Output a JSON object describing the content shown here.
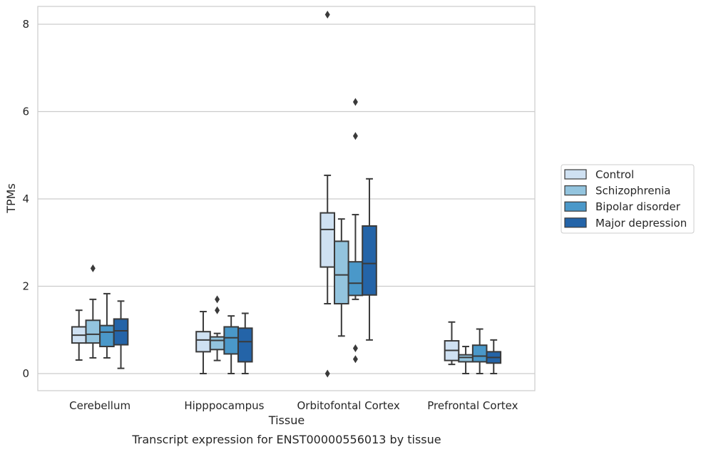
{
  "chart_data": {
    "type": "box",
    "title": "",
    "caption": "Transcript expression for ENST00000556013 by tissue",
    "xlabel": "Tissue",
    "ylabel": "TPMs",
    "ylim": [
      -0.4,
      8.65
    ],
    "yticks": [
      0,
      2,
      4,
      6,
      8
    ],
    "grid": "horizontal",
    "legend_placement": "right",
    "categories": [
      "Cerebellum",
      "Hipppocampus",
      "Orbitofontal Cortex",
      "Prefrontal Cortex"
    ],
    "series": [
      {
        "name": "Control",
        "color": "#cfe1f2",
        "boxes": [
          {
            "whislo": 0.31,
            "q1": 0.7,
            "median": 0.88,
            "q3": 1.07,
            "whishi": 1.45,
            "fliers": []
          },
          {
            "whislo": 0.0,
            "q1": 0.5,
            "median": 0.77,
            "q3": 0.96,
            "whishi": 1.42,
            "fliers": []
          },
          {
            "whislo": 1.6,
            "q1": 2.44,
            "median": 3.3,
            "q3": 3.68,
            "whishi": 4.54,
            "fliers": [
              8.22,
              0.0
            ]
          },
          {
            "whislo": 0.21,
            "q1": 0.3,
            "median": 0.53,
            "q3": 0.75,
            "whishi": 1.18,
            "fliers": []
          }
        ]
      },
      {
        "name": "Schizophrenia",
        "color": "#93c4de",
        "boxes": [
          {
            "whislo": 0.36,
            "q1": 0.7,
            "median": 0.9,
            "q3": 1.22,
            "whishi": 1.7,
            "fliers": [
              2.41
            ]
          },
          {
            "whislo": 0.3,
            "q1": 0.55,
            "median": 0.76,
            "q3": 0.84,
            "whishi": 0.92,
            "fliers": [
              1.7,
              1.45
            ]
          },
          {
            "whislo": 0.86,
            "q1": 1.6,
            "median": 2.26,
            "q3": 3.03,
            "whishi": 3.54,
            "fliers": []
          },
          {
            "whislo": 0.0,
            "q1": 0.27,
            "median": 0.37,
            "q3": 0.43,
            "whishi": 0.62,
            "fliers": []
          }
        ]
      },
      {
        "name": "Bipolar disorder",
        "color": "#4a98c9",
        "boxes": [
          {
            "whislo": 0.36,
            "q1": 0.62,
            "median": 0.95,
            "q3": 1.1,
            "whishi": 1.83,
            "fliers": []
          },
          {
            "whislo": 0.0,
            "q1": 0.45,
            "median": 0.82,
            "q3": 1.07,
            "whishi": 1.32,
            "fliers": []
          },
          {
            "whislo": 1.7,
            "q1": 1.79,
            "median": 2.07,
            "q3": 2.56,
            "whishi": 3.64,
            "fliers": [
              6.22,
              5.44,
              0.58,
              0.33
            ]
          },
          {
            "whislo": 0.0,
            "q1": 0.27,
            "median": 0.4,
            "q3": 0.65,
            "whishi": 1.02,
            "fliers": []
          }
        ]
      },
      {
        "name": "Major depression",
        "color": "#2464a8",
        "boxes": [
          {
            "whislo": 0.12,
            "q1": 0.66,
            "median": 0.98,
            "q3": 1.25,
            "whishi": 1.66,
            "fliers": []
          },
          {
            "whislo": 0.0,
            "q1": 0.27,
            "median": 0.73,
            "q3": 1.04,
            "whishi": 1.38,
            "fliers": []
          },
          {
            "whislo": 0.77,
            "q1": 1.8,
            "median": 2.52,
            "q3": 3.38,
            "whishi": 4.46,
            "fliers": []
          },
          {
            "whislo": 0.0,
            "q1": 0.24,
            "median": 0.37,
            "q3": 0.5,
            "whishi": 0.77,
            "fliers": []
          }
        ]
      }
    ]
  }
}
